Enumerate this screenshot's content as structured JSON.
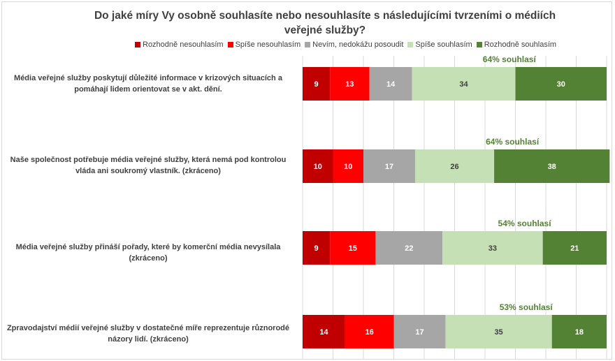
{
  "chart_data": {
    "type": "bar",
    "orientation": "horizontal",
    "stacked": true,
    "title": "Do jaké míry Vy osobně souhlasíte nebo nesouhlasíte s následujícími tvrzeními o médiích veřejné služby?",
    "xlim": [
      0,
      100
    ],
    "grid": true,
    "legend_position": "top",
    "categories": [
      "Média veřejné služby poskytují důležité informace v krizových situacích a pomáhají lidem orientovat se v akt. dění.",
      "Naše společnost potřebuje média veřejné služby, která nemá pod kontrolou vláda ani soukromý vlastník. (zkráceno)",
      "Média veřejné služby přináší pořady, které by komerční média nevysílala (zkráceno)",
      "Zpravodajství médií veřejné služby v dostatečné míře reprezentuje různorodé názory lidí. (zkráceno)"
    ],
    "series": [
      {
        "name": "Rozhodně nesouhlasím",
        "color": "#c00000",
        "label_color": "#ffffff",
        "values": [
          9,
          10,
          9,
          14
        ]
      },
      {
        "name": "Spíše nesouhlasím",
        "color": "#ff0000",
        "label_color": "#ffffff",
        "values": [
          13,
          10,
          15,
          16
        ]
      },
      {
        "name": "Nevím, nedokážu posoudit",
        "color": "#a6a6a6",
        "label_color": "#ffffff",
        "values": [
          14,
          17,
          22,
          17
        ]
      },
      {
        "name": "Spíše souhlasím",
        "color": "#c5e0b4",
        "label_color": "#404040",
        "values": [
          34,
          26,
          33,
          35
        ]
      },
      {
        "name": "Rozhodně souhlasím",
        "color": "#548235",
        "label_color": "#ffffff",
        "values": [
          30,
          38,
          21,
          18
        ]
      }
    ],
    "annotations": [
      "64% souhlasí",
      "64% souhlasí",
      "54% souhlasí",
      "53% souhlasí"
    ]
  }
}
